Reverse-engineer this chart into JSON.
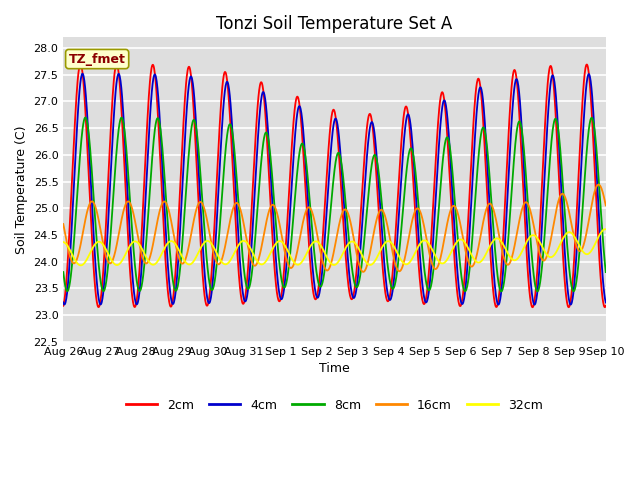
{
  "title": "Tonzi Soil Temperature Set A",
  "xlabel": "Time",
  "ylabel": "Soil Temperature (C)",
  "annotation": "TZ_fmet",
  "ylim": [
    22.5,
    28.2
  ],
  "yticks": [
    22.5,
    23.0,
    23.5,
    24.0,
    24.5,
    25.0,
    25.5,
    26.0,
    26.5,
    27.0,
    27.5,
    28.0
  ],
  "xtick_labels": [
    "Aug 26",
    "Aug 27",
    "Aug 28",
    "Aug 29",
    "Aug 30",
    "Aug 31",
    "Sep 1",
    "Sep 2",
    "Sep 3",
    "Sep 4",
    "Sep 5",
    "Sep 6",
    "Sep 7",
    "Sep 8",
    "Sep 9",
    "Sep 10"
  ],
  "legend_labels": [
    "2cm",
    "4cm",
    "8cm",
    "16cm",
    "32cm"
  ],
  "line_colors": [
    "#ff0000",
    "#0000cc",
    "#00aa00",
    "#ff8800",
    "#ffff00"
  ],
  "line_width": 1.3,
  "bg_color": "#dedede",
  "grid_color": "#ffffff",
  "title_fontsize": 12,
  "label_fontsize": 9,
  "tick_fontsize": 8,
  "annotation_fontsize": 9,
  "annotation_color": "#8b0000",
  "annotation_bg": "#ffffcc",
  "annotation_edge": "#999900"
}
